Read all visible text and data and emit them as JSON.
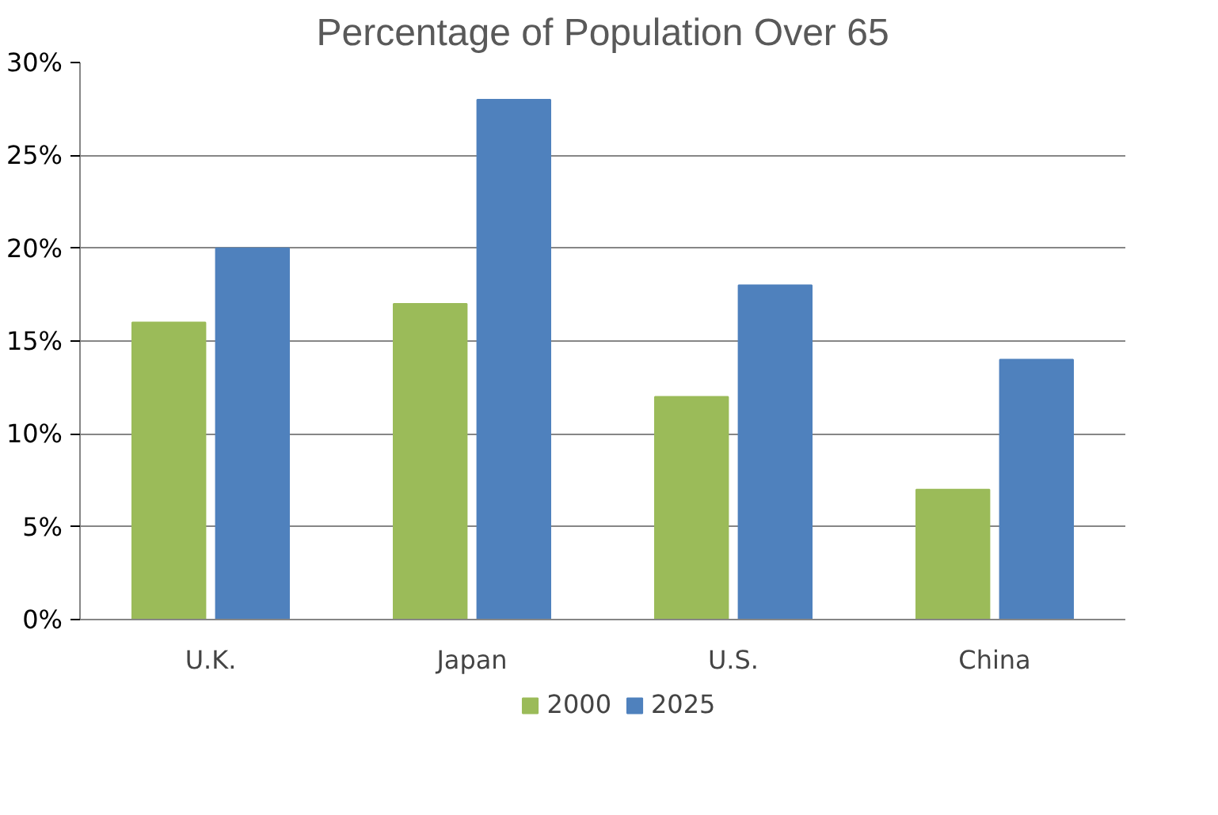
{
  "chart_data": {
    "type": "bar",
    "title": "Percentage of Population Over 65",
    "categories": [
      "U.K.",
      "Japan",
      "U.S.",
      "China"
    ],
    "series": [
      {
        "name": "2000",
        "color": "#9bbb59",
        "values": [
          16,
          17,
          12,
          7
        ]
      },
      {
        "name": "2025",
        "color": "#4f81bd",
        "values": [
          20,
          28,
          18,
          14
        ]
      }
    ],
    "ylim": [
      0,
      30
    ],
    "yticks": [
      {
        "value": 0,
        "label": "0%"
      },
      {
        "value": 5,
        "label": "5%"
      },
      {
        "value": 10,
        "label": "10%"
      },
      {
        "value": 15,
        "label": "15%"
      },
      {
        "value": 20,
        "label": "20%"
      },
      {
        "value": 25,
        "label": "25%"
      },
      {
        "value": 30,
        "label": "30%"
      }
    ],
    "grid": "y",
    "legend": "bottom"
  }
}
